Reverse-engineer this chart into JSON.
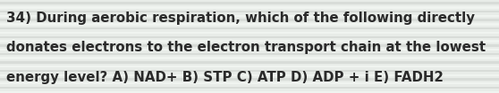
{
  "lines": [
    "34) During aerobic respiration, which of the following directly",
    "donates electrons to the electron transport chain at the lowest",
    "energy level? A) NAD+ B) STP C) ATP D) ADP + i E) FADH2"
  ],
  "bg_color": "#e8ece8",
  "stripe_light": "#f0f4f0",
  "stripe_dark": "#d8dcd8",
  "text_color": "#2a2a2a",
  "font_size": 10.8,
  "fig_width": 5.58,
  "fig_height": 1.05,
  "dpi": 100,
  "n_stripes": 22
}
